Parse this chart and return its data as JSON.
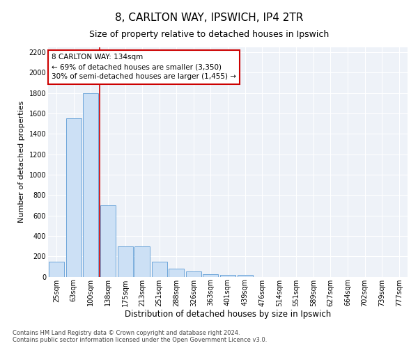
{
  "title1": "8, CARLTON WAY, IPSWICH, IP4 2TR",
  "title2": "Size of property relative to detached houses in Ipswich",
  "xlabel": "Distribution of detached houses by size in Ipswich",
  "ylabel": "Number of detached properties",
  "categories": [
    "25sqm",
    "63sqm",
    "100sqm",
    "138sqm",
    "175sqm",
    "213sqm",
    "251sqm",
    "288sqm",
    "326sqm",
    "363sqm",
    "401sqm",
    "439sqm",
    "476sqm",
    "514sqm",
    "551sqm",
    "589sqm",
    "627sqm",
    "664sqm",
    "702sqm",
    "739sqm",
    "777sqm"
  ],
  "values": [
    150,
    1550,
    1800,
    700,
    300,
    300,
    150,
    80,
    50,
    25,
    15,
    15,
    0,
    0,
    0,
    0,
    0,
    0,
    0,
    0,
    0
  ],
  "bar_color": "#cce0f5",
  "bar_edgecolor": "#5b9bd5",
  "vline_x_index": 3,
  "vline_color": "#cc0000",
  "annotation_line1": "8 CARLTON WAY: 134sqm",
  "annotation_line2": "← 69% of detached houses are smaller (3,350)",
  "annotation_line3": "30% of semi-detached houses are larger (1,455) →",
  "annotation_box_color": "#ffffff",
  "annotation_box_edgecolor": "#cc0000",
  "ylim": [
    0,
    2250
  ],
  "yticks": [
    0,
    200,
    400,
    600,
    800,
    1000,
    1200,
    1400,
    1600,
    1800,
    2000,
    2200
  ],
  "background_color": "#ffffff",
  "plot_bg_color": "#eef2f8",
  "grid_color": "#ffffff",
  "footer1": "Contains HM Land Registry data © Crown copyright and database right 2024.",
  "footer2": "Contains public sector information licensed under the Open Government Licence v3.0.",
  "title1_fontsize": 11,
  "title2_fontsize": 9,
  "tick_fontsize": 7,
  "ylabel_fontsize": 8,
  "xlabel_fontsize": 8.5
}
